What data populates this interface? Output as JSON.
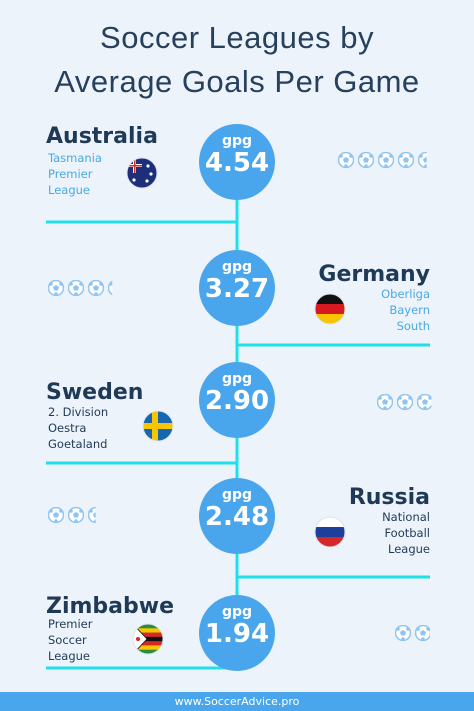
{
  "title": {
    "line1": "Soccer Leagues by",
    "line2": "Average Goals Per Game"
  },
  "colors": {
    "background": "#edf3fa",
    "accent": "#4aa6ec",
    "connector": "#1fe0ea",
    "heading": "#27405b"
  },
  "chart_data": {
    "type": "bar",
    "title": "Soccer Leagues by Average Goals Per Game",
    "unit": "gpg",
    "categories": [
      "Australia",
      "Germany",
      "Sweden",
      "Russia",
      "Zimbabwe"
    ],
    "values": [
      4.54,
      3.27,
      2.9,
      2.48,
      1.94
    ],
    "value_labels": [
      "4.54",
      "3.27",
      "2.90",
      "2.48",
      "1.94"
    ],
    "leagues": [
      [
        "Tasmania",
        "Premier",
        "League"
      ],
      [
        "Oberliga",
        "Bayern",
        "South"
      ],
      [
        "2. Division",
        "Oestra",
        "Goetaland"
      ],
      [
        "National",
        "Football",
        "League"
      ],
      [
        "Premier",
        "Soccer",
        "League"
      ]
    ],
    "flags": [
      "australia-flag",
      "germany-flag",
      "sweden-flag",
      "russia-flag",
      "zimbabwe-flag"
    ]
  },
  "footer": {
    "text": "www.SoccerAdvice.pro"
  }
}
